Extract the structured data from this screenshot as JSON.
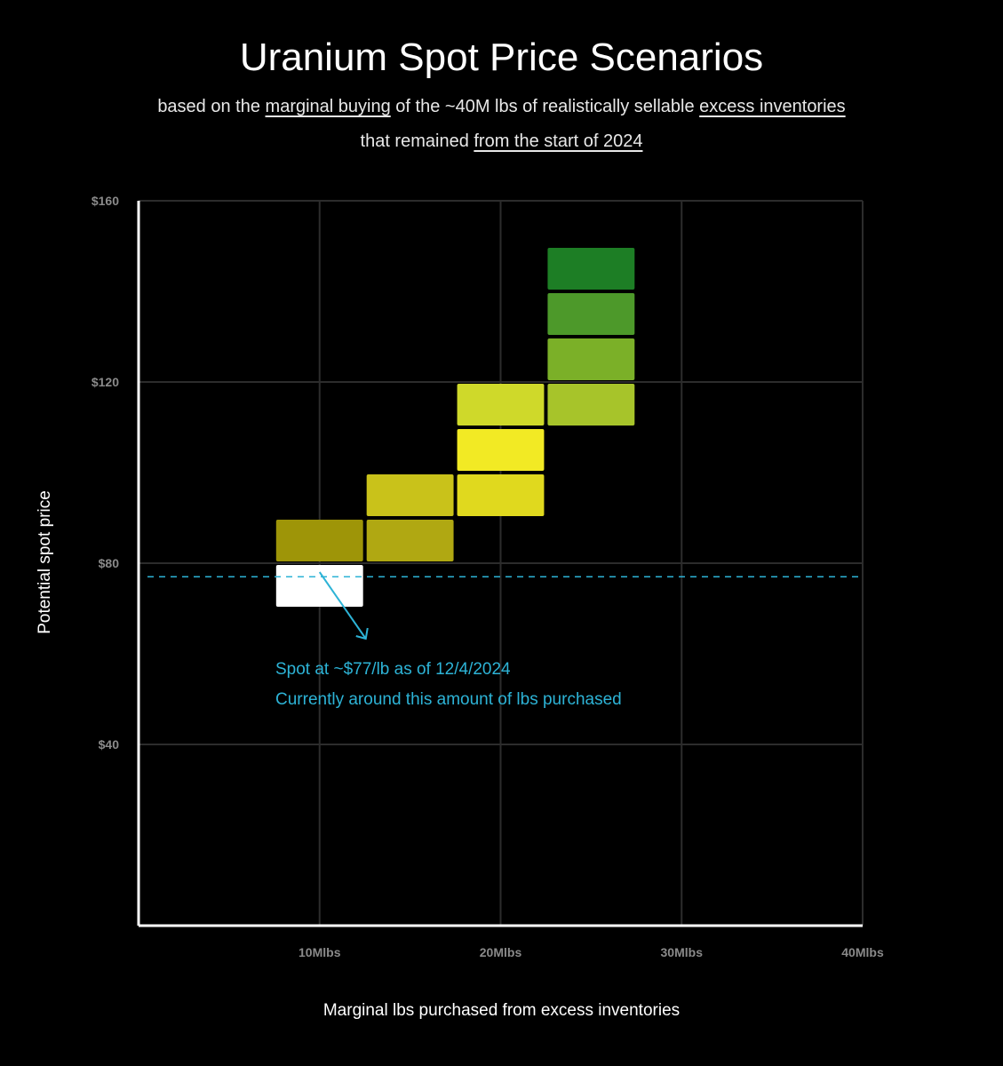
{
  "title": "Uranium Spot Price Scenarios",
  "subtitle": {
    "line1": [
      {
        "text": "based on the ",
        "u": false
      },
      {
        "text": "marginal buying",
        "u": true
      },
      {
        "text": " of the ~40M lbs of realistically sellable ",
        "u": false
      },
      {
        "text": "excess inventories",
        "u": true
      }
    ],
    "line2": [
      {
        "text": "that remained ",
        "u": false
      },
      {
        "text": "from the start of 2024",
        "u": true
      }
    ]
  },
  "annotation": {
    "line1": "Spot at ~$77/lb as of 12/4/2024",
    "line2": "Currently around this amount of lbs purchased",
    "color": "#2db3d6"
  },
  "chart_data": {
    "type": "heatmap",
    "xlabel": "Marginal lbs purchased from excess inventories",
    "ylabel": "Potential spot price",
    "xlim": [
      0,
      40
    ],
    "ylim": [
      0,
      160
    ],
    "x_ticks": [
      {
        "value": 10,
        "label": "10Mlbs"
      },
      {
        "value": 20,
        "label": "20Mlbs"
      },
      {
        "value": 30,
        "label": "30Mlbs"
      },
      {
        "value": 40,
        "label": "40Mlbs"
      }
    ],
    "y_ticks": [
      {
        "value": 40,
        "label": "$40"
      },
      {
        "value": 80,
        "label": "$80"
      },
      {
        "value": 120,
        "label": "$120"
      },
      {
        "value": 160,
        "label": "$160"
      }
    ],
    "grid": true,
    "spot_line": {
      "value": 77,
      "style": "dashed",
      "color": "#2db3d6"
    },
    "cells": [
      {
        "x": 10,
        "y": 70,
        "color": "#ffffff"
      },
      {
        "x": 10,
        "y": 80,
        "color": "#9e9508"
      },
      {
        "x": 15,
        "y": 80,
        "color": "#b0a812"
      },
      {
        "x": 15,
        "y": 90,
        "color": "#c9c21a"
      },
      {
        "x": 20,
        "y": 90,
        "color": "#e0d91e"
      },
      {
        "x": 20,
        "y": 100,
        "color": "#f2ea24"
      },
      {
        "x": 20,
        "y": 110,
        "color": "#cfd92a"
      },
      {
        "x": 25,
        "y": 110,
        "color": "#a7c42a"
      },
      {
        "x": 25,
        "y": 120,
        "color": "#7bb028"
      },
      {
        "x": 25,
        "y": 130,
        "color": "#4d992a"
      },
      {
        "x": 25,
        "y": 140,
        "color": "#1d7e25"
      }
    ],
    "cell_width": 5,
    "cell_height": 10
  }
}
